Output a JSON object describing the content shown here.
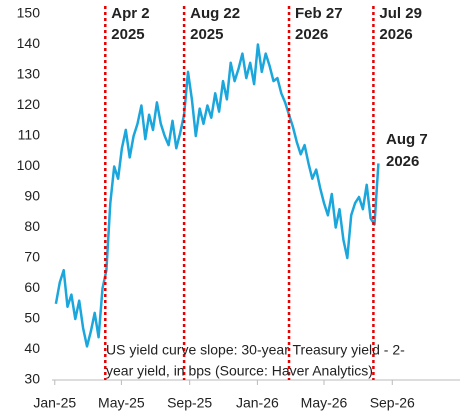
{
  "chart_data": {
    "type": "line",
    "x": [
      "2025-01-03",
      "2025-01-10",
      "2025-01-17",
      "2025-01-24",
      "2025-01-31",
      "2025-02-07",
      "2025-02-14",
      "2025-02-21",
      "2025-02-28",
      "2025-03-07",
      "2025-03-14",
      "2025-03-21",
      "2025-03-28",
      "2025-04-04",
      "2025-04-11",
      "2025-04-18",
      "2025-04-25",
      "2025-05-02",
      "2025-05-09",
      "2025-05-16",
      "2025-05-23",
      "2025-05-30",
      "2025-06-06",
      "2025-06-13",
      "2025-06-20",
      "2025-06-27",
      "2025-07-04",
      "2025-07-11",
      "2025-07-18",
      "2025-07-25",
      "2025-08-01",
      "2025-08-08",
      "2025-08-15",
      "2025-08-22",
      "2025-08-29",
      "2025-09-05",
      "2025-09-12",
      "2025-09-19",
      "2025-09-26",
      "2025-10-03",
      "2025-10-10",
      "2025-10-17",
      "2025-10-24",
      "2025-10-31",
      "2025-11-07",
      "2025-11-14",
      "2025-11-21",
      "2025-11-28",
      "2025-12-05",
      "2025-12-12",
      "2025-12-19",
      "2025-12-26",
      "2026-01-02",
      "2026-01-09",
      "2026-01-16",
      "2026-01-23",
      "2026-01-30",
      "2026-02-06",
      "2026-02-13",
      "2026-02-20",
      "2026-02-27",
      "2026-03-06",
      "2026-03-13",
      "2026-03-20",
      "2026-03-27",
      "2026-04-03",
      "2026-04-10",
      "2026-04-17",
      "2026-04-24",
      "2026-05-01",
      "2026-05-08",
      "2026-05-15",
      "2026-05-22",
      "2026-05-29",
      "2026-06-05",
      "2026-06-12",
      "2026-06-19",
      "2026-06-26",
      "2026-07-03",
      "2026-07-10",
      "2026-07-17",
      "2026-07-24",
      "2026-07-31",
      "2026-08-07"
    ],
    "series": [
      {
        "color": "#1ba6dc",
        "values": [
          55,
          62,
          66,
          54,
          58,
          50,
          56,
          47,
          41,
          46,
          52,
          44,
          60,
          66,
          88,
          100,
          96,
          106,
          112,
          103,
          110,
          114,
          120,
          109,
          117,
          112,
          121,
          114,
          110,
          107,
          115,
          106,
          111,
          117,
          131,
          122,
          110,
          119,
          114,
          120,
          116,
          124,
          118,
          128,
          122,
          134,
          128,
          132,
          137,
          129,
          134,
          127,
          140,
          131,
          137,
          133,
          128,
          129,
          124,
          121,
          117,
          113,
          108,
          104,
          107,
          101,
          96,
          99,
          93,
          88,
          84,
          91,
          80,
          86,
          76,
          70,
          84,
          88,
          90,
          86,
          94,
          83,
          81,
          101
        ]
      }
    ],
    "xlim": [
      "2024-12-27",
      "2027-01-01"
    ],
    "xticks": [
      {
        "value": "2025-01-01",
        "label": "Jan-25"
      },
      {
        "value": "2025-05-01",
        "label": "May-25"
      },
      {
        "value": "2025-09-01",
        "label": "Sep-25"
      },
      {
        "value": "2026-01-01",
        "label": "Jan-26"
      },
      {
        "value": "2026-05-01",
        "label": "May-26"
      },
      {
        "value": "2026-09-01",
        "label": "Sep-26"
      }
    ],
    "ylim": [
      30,
      150
    ],
    "yticks": [
      30,
      40,
      50,
      60,
      70,
      80,
      90,
      100,
      110,
      120,
      130,
      140,
      150
    ],
    "grid": false,
    "markers": [
      {
        "x": "2025-04-02",
        "lines": [
          "Apr 2",
          "2025"
        ],
        "color": "#e60000"
      },
      {
        "x": "2025-08-22",
        "lines": [
          "Aug 22",
          "2025"
        ],
        "color": "#e60000"
      },
      {
        "x": "2026-02-27",
        "lines": [
          "Feb 27",
          "2026"
        ],
        "color": "#e60000"
      },
      {
        "x": "2026-07-29",
        "lines": [
          "Jul 29",
          "2026"
        ],
        "color": "#e60000"
      }
    ],
    "end_label": {
      "lines": [
        "Aug 7",
        "2026"
      ],
      "color": "#1ba6dc"
    },
    "note_lines": [
      "US yield curve slope: 30-year Treasury yield - 2-",
      "year yield, in bps (Source: Haver Analytics)"
    ]
  }
}
